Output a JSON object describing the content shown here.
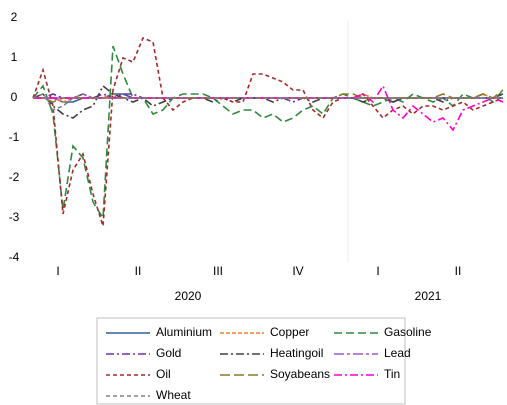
{
  "chart_data": {
    "type": "line",
    "categories": [
      null,
      null,
      null,
      "I",
      null,
      null,
      null,
      null,
      null,
      null,
      null,
      "II",
      null,
      null,
      null,
      null,
      null,
      null,
      null,
      "III",
      null,
      null,
      null,
      null,
      null,
      null,
      null,
      "IV",
      null,
      null,
      null,
      null,
      null,
      null,
      null,
      "I",
      null,
      null,
      null,
      null,
      null,
      null,
      null,
      "II",
      null,
      null,
      null,
      null
    ],
    "year_groups": [
      {
        "label": "2020",
        "start": 0,
        "end": 31
      },
      {
        "label": "2021",
        "start": 32,
        "end": 47
      }
    ],
    "ylim": [
      -4,
      2
    ],
    "yticks": [
      2,
      1,
      0,
      -1,
      -2,
      -3,
      -4
    ],
    "grid": false,
    "series": [
      {
        "name": "Aluminium",
        "color": "#2e5fa1",
        "values": [
          0,
          0,
          0,
          -0.1,
          -0.1,
          0,
          0,
          0,
          0.1,
          0.1,
          0,
          0,
          0,
          0,
          0,
          0,
          0,
          0,
          0,
          0,
          0,
          0,
          0,
          0,
          0,
          0,
          0,
          0,
          0,
          0,
          0,
          0,
          0,
          0,
          0,
          0,
          0,
          0,
          0,
          0,
          0,
          0,
          0,
          0,
          0,
          0,
          0,
          0
        ]
      },
      {
        "name": "Copper",
        "color": "#ed7d31",
        "values": [
          0,
          0,
          0,
          -0.1,
          0,
          0,
          0,
          0,
          0.1,
          0,
          0,
          0,
          0,
          0,
          0,
          0,
          0,
          0,
          0,
          0,
          0,
          0,
          0,
          0,
          0,
          0,
          0,
          0,
          0,
          0,
          0,
          0,
          0,
          0.1,
          0,
          0,
          0,
          0,
          0,
          0,
          0,
          0,
          0,
          0,
          0,
          0.1,
          0,
          0
        ]
      },
      {
        "name": "Gasoline",
        "color": "#2e8b3e",
        "values": [
          0,
          0.3,
          -0.4,
          -2.8,
          -1.2,
          -1.5,
          -2.6,
          -3.0,
          1.3,
          0.6,
          0,
          0,
          -0.4,
          -0.3,
          0,
          0.1,
          0.1,
          0.1,
          0,
          -0.2,
          -0.4,
          -0.3,
          -0.3,
          -0.5,
          -0.4,
          -0.6,
          -0.5,
          -0.3,
          -0.2,
          -0.4,
          0,
          0.1,
          0,
          -0.1,
          -0.2,
          -0.1,
          0,
          -0.1,
          0.1,
          0,
          -0.1,
          0,
          -0.2,
          0.1,
          0,
          0.1,
          -0.1,
          0.2
        ]
      },
      {
        "name": "Gold",
        "color": "#7030a0",
        "values": [
          0,
          0,
          0.1,
          0,
          0,
          0.1,
          0,
          0.1,
          0,
          0.1,
          0.1,
          0,
          0,
          0,
          0,
          0,
          0,
          0,
          0,
          0,
          0,
          0,
          0,
          0,
          0,
          0,
          -0.1,
          0,
          0,
          0,
          0,
          0,
          0,
          0,
          0,
          0,
          -0.1,
          0,
          0,
          0,
          0,
          0,
          0,
          0,
          0,
          0,
          0,
          0
        ]
      },
      {
        "name": "Heatingoil",
        "color": "#404040",
        "values": [
          0,
          0.1,
          -0.2,
          -0.4,
          -0.5,
          -0.3,
          -0.2,
          0.3,
          0.1,
          0,
          -0.1,
          0,
          -0.2,
          -0.1,
          0,
          0,
          0,
          0,
          -0.1,
          0,
          -0.1,
          0,
          0,
          0,
          -0.1,
          0,
          0,
          0,
          -0.1,
          0,
          0,
          0,
          0,
          -0.1,
          0,
          0,
          -0.1,
          0,
          0,
          0,
          0,
          -0.1,
          0,
          0,
          0,
          0,
          0,
          0.1
        ]
      },
      {
        "name": "Lead",
        "color": "#9b59d0",
        "values": [
          0,
          0,
          0,
          0,
          0,
          0,
          0,
          0,
          0,
          0,
          0,
          0,
          0,
          0,
          0,
          0,
          0,
          0,
          0,
          0,
          0,
          0,
          0,
          0,
          0,
          0,
          0,
          0,
          0,
          0,
          0,
          0,
          0,
          0,
          0,
          0,
          0,
          0,
          0,
          0,
          0,
          0,
          0,
          0,
          0,
          0,
          0,
          0
        ]
      },
      {
        "name": "Oil",
        "color": "#a52a2a",
        "values": [
          0,
          0.7,
          -0.2,
          -2.9,
          -1.8,
          -1.4,
          -2.4,
          -3.2,
          0.2,
          1.0,
          0.9,
          1.5,
          1.4,
          0,
          -0.3,
          -0.1,
          0,
          0,
          0,
          0,
          -0.1,
          -0.1,
          0.6,
          0.6,
          0.5,
          0.4,
          0.2,
          0.2,
          -0.3,
          -0.5,
          -0.1,
          0,
          0,
          0.1,
          -0.2,
          -0.5,
          -0.3,
          -0.2,
          -0.4,
          -0.2,
          -0.2,
          -0.3,
          -0.2,
          -0.1,
          -0.3,
          -0.2,
          -0.1,
          0
        ]
      },
      {
        "name": "Soyabeans",
        "color": "#8c7a2a",
        "values": [
          0,
          0,
          -0.1,
          0,
          0,
          0,
          0,
          0,
          0,
          0,
          0,
          0,
          0,
          0,
          0,
          0,
          0,
          0,
          0,
          0,
          0,
          0,
          0,
          0,
          0,
          0,
          0,
          0,
          0,
          0,
          0,
          0.1,
          0.1,
          0,
          0,
          0,
          0,
          0,
          0,
          0,
          0,
          0.1,
          0,
          0,
          0,
          0.1,
          0,
          0.2
        ]
      },
      {
        "name": "Tin",
        "color": "#ff00cc",
        "values": [
          0,
          0,
          0,
          0,
          0,
          0,
          0,
          0,
          0,
          0,
          0,
          0,
          0,
          0,
          0,
          0,
          0,
          0,
          0,
          0,
          0,
          0,
          0,
          0,
          0,
          0,
          0,
          0,
          0,
          0,
          0,
          0,
          0,
          0.1,
          -0.1,
          0.3,
          -0.3,
          -0.5,
          -0.2,
          -0.4,
          -0.6,
          -0.5,
          -0.8,
          -0.3,
          -0.2,
          -0.1,
          0,
          -0.1
        ]
      },
      {
        "name": "Wheat",
        "color": "#808080",
        "values": [
          0,
          0.1,
          -0.3,
          -0.2,
          0,
          0.1,
          0,
          0,
          0,
          0,
          0,
          0,
          0,
          0,
          0,
          0,
          0,
          0,
          0,
          0,
          0,
          0,
          0,
          0,
          0,
          0,
          0,
          0,
          0,
          0,
          0,
          0,
          0,
          0,
          0,
          0,
          0,
          0,
          0,
          0,
          0,
          0,
          0,
          0,
          0,
          0,
          0,
          0
        ]
      }
    ]
  }
}
